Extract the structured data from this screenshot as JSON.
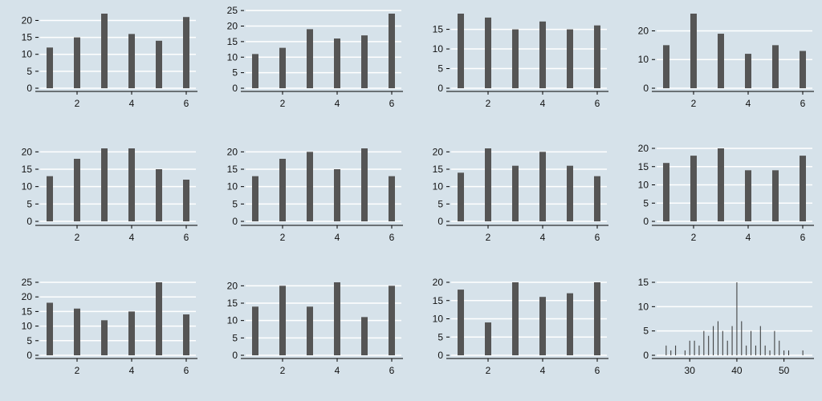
{
  "colors": {
    "background": "#d6e2ea",
    "grid": "#ffffff",
    "bar": "#555555",
    "axis": "#000000"
  },
  "chart_data": [
    {
      "type": "bar",
      "x": [
        1,
        2,
        3,
        4,
        5,
        6
      ],
      "values": [
        12,
        15,
        22,
        16,
        14,
        21
      ],
      "xticks": [
        2,
        4,
        6
      ],
      "yticks": [
        0,
        5,
        10,
        15,
        20
      ],
      "ylim": [
        0,
        22
      ],
      "grid": true
    },
    {
      "type": "bar",
      "x": [
        1,
        2,
        3,
        4,
        5,
        6
      ],
      "values": [
        11,
        13,
        19,
        16,
        17,
        24
      ],
      "xticks": [
        2,
        4,
        6
      ],
      "yticks": [
        0,
        5,
        10,
        15,
        20,
        25
      ],
      "ylim": [
        0,
        24
      ],
      "grid": true
    },
    {
      "type": "bar",
      "x": [
        1,
        2,
        3,
        4,
        5,
        6
      ],
      "values": [
        19,
        18,
        15,
        17,
        15,
        16
      ],
      "xticks": [
        2,
        4,
        6
      ],
      "yticks": [
        0,
        5,
        10,
        15
      ],
      "ylim": [
        0,
        19
      ],
      "grid": true
    },
    {
      "type": "bar",
      "x": [
        1,
        2,
        3,
        4,
        5,
        6
      ],
      "values": [
        15,
        26,
        19,
        12,
        15,
        13
      ],
      "xticks": [
        2,
        4,
        6
      ],
      "yticks": [
        0,
        10,
        20
      ],
      "ylim": [
        0,
        26
      ],
      "grid": true
    },
    {
      "type": "bar",
      "x": [
        1,
        2,
        3,
        4,
        5,
        6
      ],
      "values": [
        13,
        18,
        21,
        21,
        15,
        12
      ],
      "xticks": [
        2,
        4,
        6
      ],
      "yticks": [
        0,
        5,
        10,
        15,
        20
      ],
      "ylim": [
        0,
        21
      ],
      "grid": true
    },
    {
      "type": "bar",
      "x": [
        1,
        2,
        3,
        4,
        5,
        6
      ],
      "values": [
        13,
        18,
        20,
        15,
        21,
        13
      ],
      "xticks": [
        2,
        4,
        6
      ],
      "yticks": [
        0,
        5,
        10,
        15,
        20
      ],
      "ylim": [
        0,
        21
      ],
      "grid": true
    },
    {
      "type": "bar",
      "x": [
        1,
        2,
        3,
        4,
        5,
        6
      ],
      "values": [
        14,
        21,
        16,
        20,
        16,
        13
      ],
      "xticks": [
        2,
        4,
        6
      ],
      "yticks": [
        0,
        5,
        10,
        15,
        20
      ],
      "ylim": [
        0,
        21
      ],
      "grid": true
    },
    {
      "type": "bar",
      "x": [
        1,
        2,
        3,
        4,
        5,
        6
      ],
      "values": [
        16,
        18,
        20,
        14,
        14,
        18
      ],
      "xticks": [
        2,
        4,
        6
      ],
      "yticks": [
        0,
        5,
        10,
        15,
        20
      ],
      "ylim": [
        0,
        20
      ],
      "grid": true
    },
    {
      "type": "bar",
      "x": [
        1,
        2,
        3,
        4,
        5,
        6
      ],
      "values": [
        18,
        16,
        12,
        15,
        25,
        14
      ],
      "xticks": [
        2,
        4,
        6
      ],
      "yticks": [
        0,
        5,
        10,
        15,
        20,
        25
      ],
      "ylim": [
        0,
        25
      ],
      "grid": true
    },
    {
      "type": "bar",
      "x": [
        1,
        2,
        3,
        4,
        5,
        6
      ],
      "values": [
        14,
        20,
        14,
        21,
        11,
        20
      ],
      "xticks": [
        2,
        4,
        6
      ],
      "yticks": [
        0,
        5,
        10,
        15,
        20
      ],
      "ylim": [
        0,
        21
      ],
      "grid": true
    },
    {
      "type": "bar",
      "x": [
        1,
        2,
        3,
        4,
        5,
        6
      ],
      "values": [
        18,
        9,
        20,
        16,
        17,
        20
      ],
      "xticks": [
        2,
        4,
        6
      ],
      "yticks": [
        0,
        5,
        10,
        15,
        20
      ],
      "ylim": [
        0,
        20
      ],
      "grid": true
    },
    {
      "type": "bar",
      "x": [
        25,
        26,
        27,
        29,
        30,
        31,
        32,
        33,
        34,
        35,
        36,
        37,
        38,
        39,
        40,
        41,
        42,
        43,
        44,
        45,
        46,
        47,
        48,
        49,
        50,
        51,
        54
      ],
      "values": [
        2,
        1,
        2,
        1,
        3,
        3,
        2,
        5,
        4,
        6,
        7,
        5,
        3,
        6,
        15,
        7,
        2,
        5,
        2,
        6,
        2,
        1,
        5,
        3,
        1,
        1,
        1
      ],
      "xticks": [
        30,
        40,
        50
      ],
      "yticks": [
        0,
        5,
        10,
        15
      ],
      "ylim": [
        0,
        15
      ],
      "xlim": [
        24,
        55
      ],
      "grid": true,
      "thin": true
    }
  ]
}
